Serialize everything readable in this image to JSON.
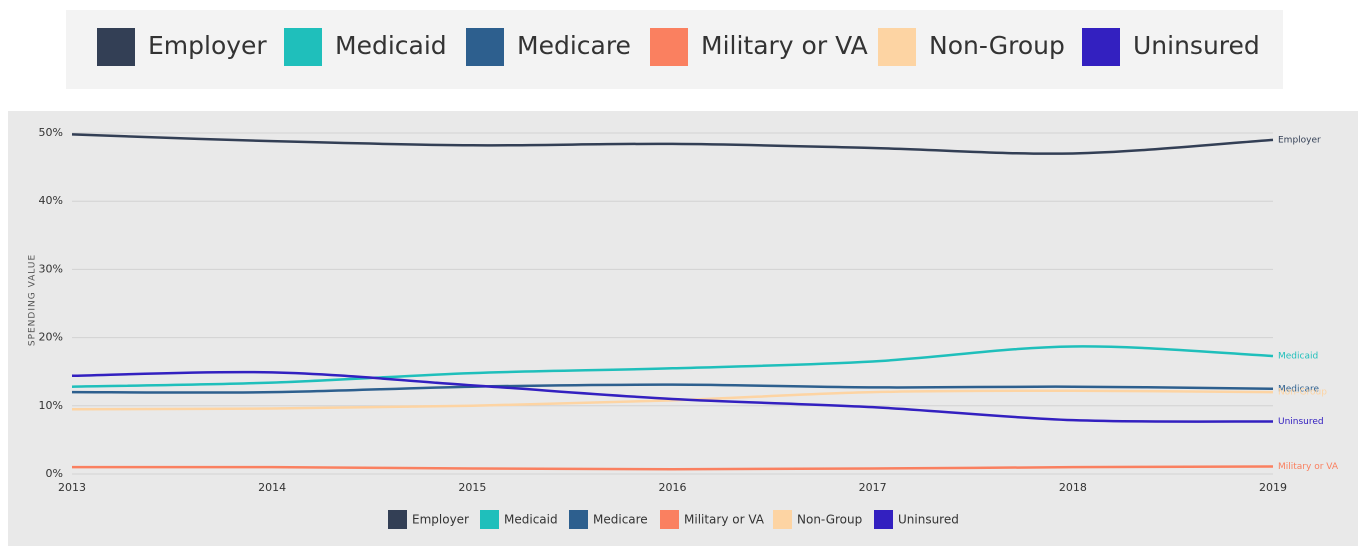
{
  "chart_data": {
    "type": "line",
    "y_label": "SPENDING VALUE",
    "categories": [
      "2013",
      "2014",
      "2015",
      "2016",
      "2017",
      "2018",
      "2019"
    ],
    "series": [
      {
        "name": "Employer",
        "color": "#333f55",
        "values": [
          49.8,
          48.8,
          48.2,
          48.4,
          47.8,
          47.0,
          49.0
        ]
      },
      {
        "name": "Medicaid",
        "color": "#1fbfbb",
        "values": [
          12.8,
          13.4,
          14.8,
          15.5,
          16.5,
          18.7,
          17.3
        ]
      },
      {
        "name": "Medicare",
        "color": "#2d5f8e",
        "values": [
          12.0,
          12.0,
          12.8,
          13.1,
          12.7,
          12.8,
          12.5
        ]
      },
      {
        "name": "Military or VA",
        "color": "#fa8060",
        "values": [
          1.0,
          1.0,
          0.8,
          0.7,
          0.8,
          1.0,
          1.1
        ]
      },
      {
        "name": "Non-Group",
        "color": "#fdd4a3",
        "values": [
          9.5,
          9.6,
          10.0,
          10.8,
          12.0,
          12.2,
          12.0
        ]
      },
      {
        "name": "Uninsured",
        "color": "#3320c0",
        "values": [
          14.4,
          14.9,
          13.0,
          11.0,
          9.8,
          7.9,
          7.7
        ]
      }
    ],
    "ylim": [
      0,
      50
    ],
    "yticks": [
      {
        "value": 0,
        "label": "0%"
      },
      {
        "value": 10,
        "label": "10%"
      },
      {
        "value": 20,
        "label": "20%"
      },
      {
        "value": 30,
        "label": "30%"
      },
      {
        "value": 40,
        "label": "40%"
      },
      {
        "value": 50,
        "label": "50%"
      }
    ],
    "grid": true
  }
}
